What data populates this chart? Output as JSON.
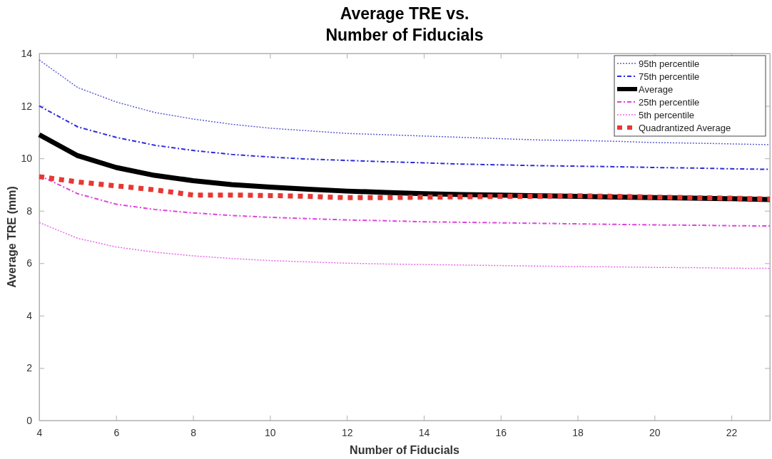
{
  "chart_data": {
    "type": "line",
    "title": "Average TRE vs.\nNumber of Fiducials",
    "xlabel": "Number of Fiducials",
    "ylabel": "Average TRE (mm)",
    "x": [
      4,
      5,
      6,
      7,
      8,
      9,
      10,
      11,
      12,
      13,
      14,
      15,
      16,
      17,
      18,
      19,
      20,
      21,
      22,
      23
    ],
    "xlim": [
      4,
      23
    ],
    "xticks": [
      4,
      6,
      8,
      10,
      12,
      14,
      16,
      18,
      20,
      22
    ],
    "ylim": [
      0,
      14
    ],
    "yticks": [
      0,
      2,
      4,
      6,
      8,
      10,
      12,
      14
    ],
    "grid": false,
    "legend": "top right",
    "series": [
      {
        "name": "95th percentile",
        "color": "#5b5bd6",
        "line_style": "dotted",
        "values": [
          13.75,
          12.7,
          12.15,
          11.75,
          11.5,
          11.3,
          11.15,
          11.05,
          10.95,
          10.9,
          10.85,
          10.8,
          10.75,
          10.7,
          10.68,
          10.65,
          10.6,
          10.58,
          10.55,
          10.52
        ]
      },
      {
        "name": "75th percentile",
        "color": "#2a2adf",
        "line_style": "dashed",
        "values": [
          12.0,
          11.2,
          10.8,
          10.5,
          10.3,
          10.15,
          10.05,
          9.97,
          9.92,
          9.87,
          9.83,
          9.78,
          9.75,
          9.72,
          9.7,
          9.68,
          9.65,
          9.63,
          9.6,
          9.58
        ]
      },
      {
        "name": "Average",
        "color": "#000000",
        "line_style": "solid",
        "values": [
          10.9,
          10.1,
          9.65,
          9.35,
          9.15,
          9.0,
          8.9,
          8.82,
          8.75,
          8.7,
          8.65,
          8.62,
          8.6,
          8.57,
          8.55,
          8.52,
          8.5,
          8.48,
          8.46,
          8.43
        ]
      },
      {
        "name": "25th percentile",
        "color": "#e040e0",
        "line_style": "dashed",
        "values": [
          9.35,
          8.65,
          8.25,
          8.05,
          7.92,
          7.82,
          7.75,
          7.7,
          7.65,
          7.62,
          7.58,
          7.56,
          7.54,
          7.52,
          7.5,
          7.48,
          7.46,
          7.45,
          7.43,
          7.42
        ]
      },
      {
        "name": "5th percentile",
        "color": "#e668e6",
        "line_style": "dotted",
        "values": [
          7.55,
          6.95,
          6.62,
          6.42,
          6.28,
          6.18,
          6.1,
          6.05,
          6.0,
          5.97,
          5.95,
          5.93,
          5.91,
          5.89,
          5.87,
          5.86,
          5.84,
          5.83,
          5.81,
          5.8
        ]
      },
      {
        "name": "Quadrantized Average",
        "color": "#e53935",
        "line_style": "dotted",
        "values": [
          9.3,
          9.1,
          8.95,
          8.8,
          8.6,
          8.6,
          8.58,
          8.55,
          8.5,
          8.5,
          8.52,
          8.53,
          8.55,
          8.55,
          8.57,
          8.55,
          8.52,
          8.5,
          8.48,
          8.45
        ]
      }
    ]
  }
}
